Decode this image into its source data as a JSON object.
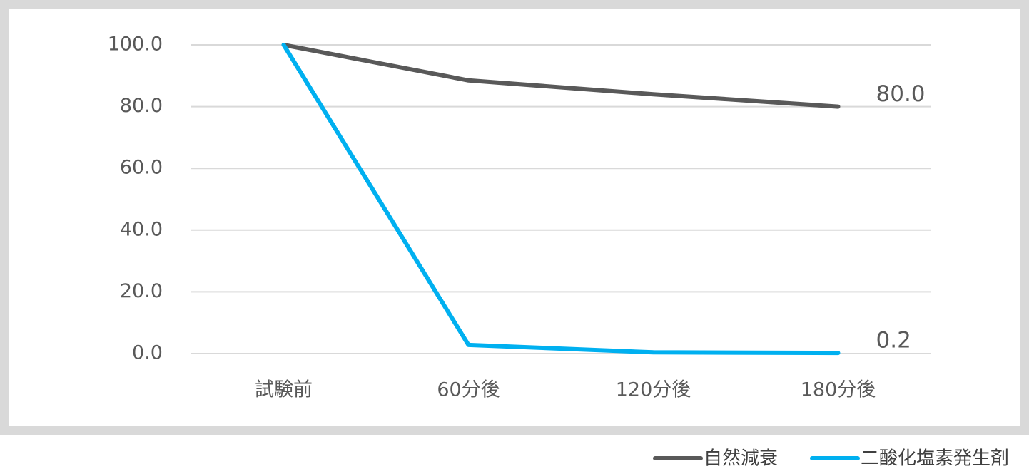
{
  "chart_data": {
    "type": "line",
    "categories": [
      "試験前",
      "60分後",
      "120分後",
      "180分後"
    ],
    "series": [
      {
        "name": "自然減衰",
        "color": "#595959",
        "values": [
          100,
          88.5,
          84,
          80
        ],
        "value_labels": [
          null,
          null,
          null,
          "80.0"
        ]
      },
      {
        "name": "二酸化塩素発生剤",
        "color": "#00b0f0",
        "values": [
          100,
          2.8,
          0.4,
          0.2
        ],
        "value_labels": [
          null,
          null,
          null,
          "0.2"
        ]
      }
    ],
    "ylim": [
      0,
      100
    ],
    "yticks": [
      {
        "value": 0,
        "label": "0.0"
      },
      {
        "value": 20,
        "label": "20.0"
      },
      {
        "value": 40,
        "label": "40.0"
      },
      {
        "value": 60,
        "label": "60.0"
      },
      {
        "value": 80,
        "label": "80.0"
      },
      {
        "value": 100,
        "label": "100.0"
      }
    ],
    "grid": true,
    "legend": "bottom-right"
  }
}
